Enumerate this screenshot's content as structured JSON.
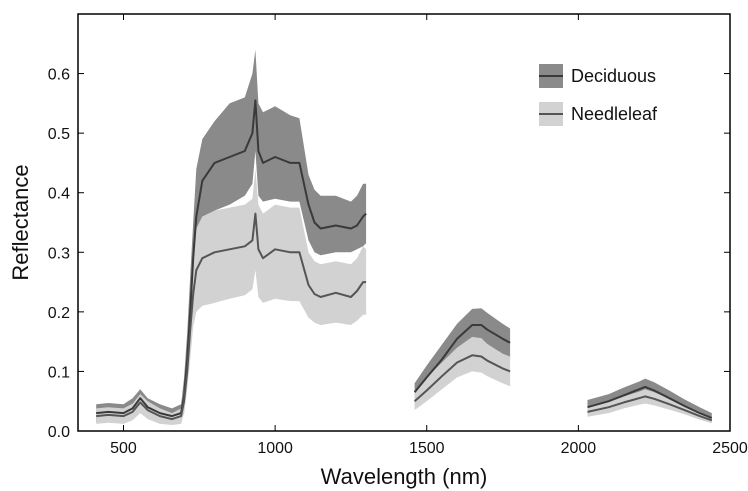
{
  "chart_data": {
    "type": "area",
    "xlabel": "Wavelength (nm)",
    "ylabel": "Reflectance",
    "xlim": [
      350,
      2500
    ],
    "ylim": [
      0,
      0.7
    ],
    "xticks": [
      500,
      1000,
      1500,
      2000,
      2500
    ],
    "yticks": [
      0.0,
      0.1,
      0.2,
      0.3,
      0.4,
      0.5,
      0.6
    ],
    "ytick_labels": [
      "0.0",
      "0.1",
      "0.2",
      "0.3",
      "0.4",
      "0.5",
      "0.6"
    ],
    "grid": false,
    "legend_position": "top-right",
    "series": [
      {
        "name": "Deciduous",
        "band_color": "#8a8a8a",
        "line_color": "#3a3a3a",
        "segments": [
          {
            "x": [
              410,
              450,
              500,
              530,
              555,
              580,
              620,
              660,
              690,
              700,
              710,
              720,
              730,
              740,
              760,
              800,
              850,
              900,
              925,
              935,
              945,
              960,
              1000,
              1050,
              1080,
              1110,
              1130,
              1150,
              1200,
              1250,
              1270,
              1290,
              1300
            ],
            "y": [
              0.03,
              0.032,
              0.03,
              0.038,
              0.055,
              0.04,
              0.03,
              0.025,
              0.03,
              0.06,
              0.12,
              0.2,
              0.29,
              0.36,
              0.42,
              0.45,
              0.46,
              0.47,
              0.5,
              0.555,
              0.47,
              0.45,
              0.46,
              0.45,
              0.45,
              0.38,
              0.35,
              0.34,
              0.345,
              0.34,
              0.345,
              0.36,
              0.365
            ],
            "lower": [
              0.015,
              0.017,
              0.015,
              0.022,
              0.035,
              0.025,
              0.016,
              0.012,
              0.016,
              0.03,
              0.08,
              0.16,
              0.24,
              0.3,
              0.35,
              0.37,
              0.38,
              0.395,
              0.415,
              0.47,
              0.395,
              0.385,
              0.39,
              0.385,
              0.385,
              0.32,
              0.3,
              0.295,
              0.3,
              0.3,
              0.305,
              0.31,
              0.315
            ],
            "upper": [
              0.045,
              0.047,
              0.045,
              0.055,
              0.07,
              0.055,
              0.045,
              0.038,
              0.045,
              0.09,
              0.165,
              0.26,
              0.35,
              0.44,
              0.49,
              0.52,
              0.55,
              0.56,
              0.6,
              0.64,
              0.55,
              0.535,
              0.545,
              0.53,
              0.525,
              0.43,
              0.405,
              0.395,
              0.395,
              0.385,
              0.395,
              0.415,
              0.415
            ]
          },
          {
            "x": [
              1460,
              1500,
              1550,
              1600,
              1650,
              1680,
              1700,
              1750,
              1775
            ],
            "y": [
              0.065,
              0.09,
              0.12,
              0.155,
              0.178,
              0.178,
              0.17,
              0.155,
              0.148
            ],
            "lower": [
              0.052,
              0.072,
              0.1,
              0.13,
              0.15,
              0.15,
              0.143,
              0.128,
              0.122
            ],
            "upper": [
              0.08,
              0.11,
              0.145,
              0.18,
              0.205,
              0.206,
              0.198,
              0.18,
              0.172
            ]
          },
          {
            "x": [
              2030,
              2100,
              2150,
              2200,
              2220,
              2250,
              2300,
              2350,
              2400,
              2440
            ],
            "y": [
              0.04,
              0.05,
              0.06,
              0.07,
              0.074,
              0.068,
              0.055,
              0.042,
              0.03,
              0.022
            ],
            "lower": [
              0.03,
              0.04,
              0.048,
              0.057,
              0.06,
              0.055,
              0.043,
              0.032,
              0.022,
              0.016
            ],
            "upper": [
              0.052,
              0.062,
              0.073,
              0.083,
              0.088,
              0.082,
              0.068,
              0.053,
              0.04,
              0.03
            ]
          }
        ]
      },
      {
        "name": "Needleleaf",
        "band_color": "#d2d2d2",
        "line_color": "#555555",
        "segments": [
          {
            "x": [
              410,
              450,
              500,
              530,
              555,
              580,
              620,
              660,
              690,
              700,
              710,
              720,
              730,
              740,
              760,
              800,
              850,
              900,
              925,
              935,
              945,
              960,
              1000,
              1050,
              1080,
              1110,
              1130,
              1150,
              1200,
              1250,
              1270,
              1290,
              1300
            ],
            "y": [
              0.025,
              0.027,
              0.025,
              0.032,
              0.048,
              0.035,
              0.025,
              0.02,
              0.025,
              0.05,
              0.1,
              0.17,
              0.23,
              0.27,
              0.29,
              0.3,
              0.305,
              0.31,
              0.32,
              0.365,
              0.305,
              0.29,
              0.305,
              0.3,
              0.3,
              0.245,
              0.23,
              0.225,
              0.232,
              0.225,
              0.235,
              0.25,
              0.25
            ],
            "lower": [
              0.012,
              0.014,
              0.012,
              0.018,
              0.03,
              0.02,
              0.012,
              0.01,
              0.012,
              0.03,
              0.07,
              0.12,
              0.175,
              0.2,
              0.21,
              0.215,
              0.222,
              0.228,
              0.238,
              0.27,
              0.225,
              0.215,
              0.222,
              0.218,
              0.218,
              0.19,
              0.182,
              0.178,
              0.182,
              0.178,
              0.185,
              0.195,
              0.195
            ],
            "upper": [
              0.038,
              0.04,
              0.038,
              0.046,
              0.062,
              0.05,
              0.038,
              0.03,
              0.038,
              0.075,
              0.13,
              0.22,
              0.3,
              0.34,
              0.36,
              0.37,
              0.375,
              0.38,
              0.39,
              0.44,
              0.38,
              0.365,
              0.38,
              0.375,
              0.375,
              0.3,
              0.285,
              0.28,
              0.285,
              0.28,
              0.29,
              0.31,
              0.305
            ]
          },
          {
            "x": [
              1460,
              1500,
              1550,
              1600,
              1650,
              1680,
              1700,
              1750,
              1775
            ],
            "y": [
              0.05,
              0.068,
              0.092,
              0.115,
              0.127,
              0.125,
              0.118,
              0.105,
              0.1
            ],
            "lower": [
              0.035,
              0.05,
              0.07,
              0.09,
              0.1,
              0.098,
              0.092,
              0.08,
              0.075
            ],
            "upper": [
              0.065,
              0.09,
              0.115,
              0.14,
              0.158,
              0.156,
              0.146,
              0.13,
              0.125
            ]
          },
          {
            "x": [
              2030,
              2100,
              2150,
              2200,
              2220,
              2250,
              2300,
              2350,
              2400,
              2440
            ],
            "y": [
              0.032,
              0.04,
              0.048,
              0.055,
              0.058,
              0.054,
              0.045,
              0.035,
              0.025,
              0.018
            ],
            "lower": [
              0.024,
              0.03,
              0.038,
              0.044,
              0.046,
              0.043,
              0.036,
              0.028,
              0.019,
              0.013
            ],
            "upper": [
              0.04,
              0.05,
              0.058,
              0.066,
              0.07,
              0.065,
              0.055,
              0.043,
              0.032,
              0.024
            ]
          }
        ]
      }
    ]
  }
}
